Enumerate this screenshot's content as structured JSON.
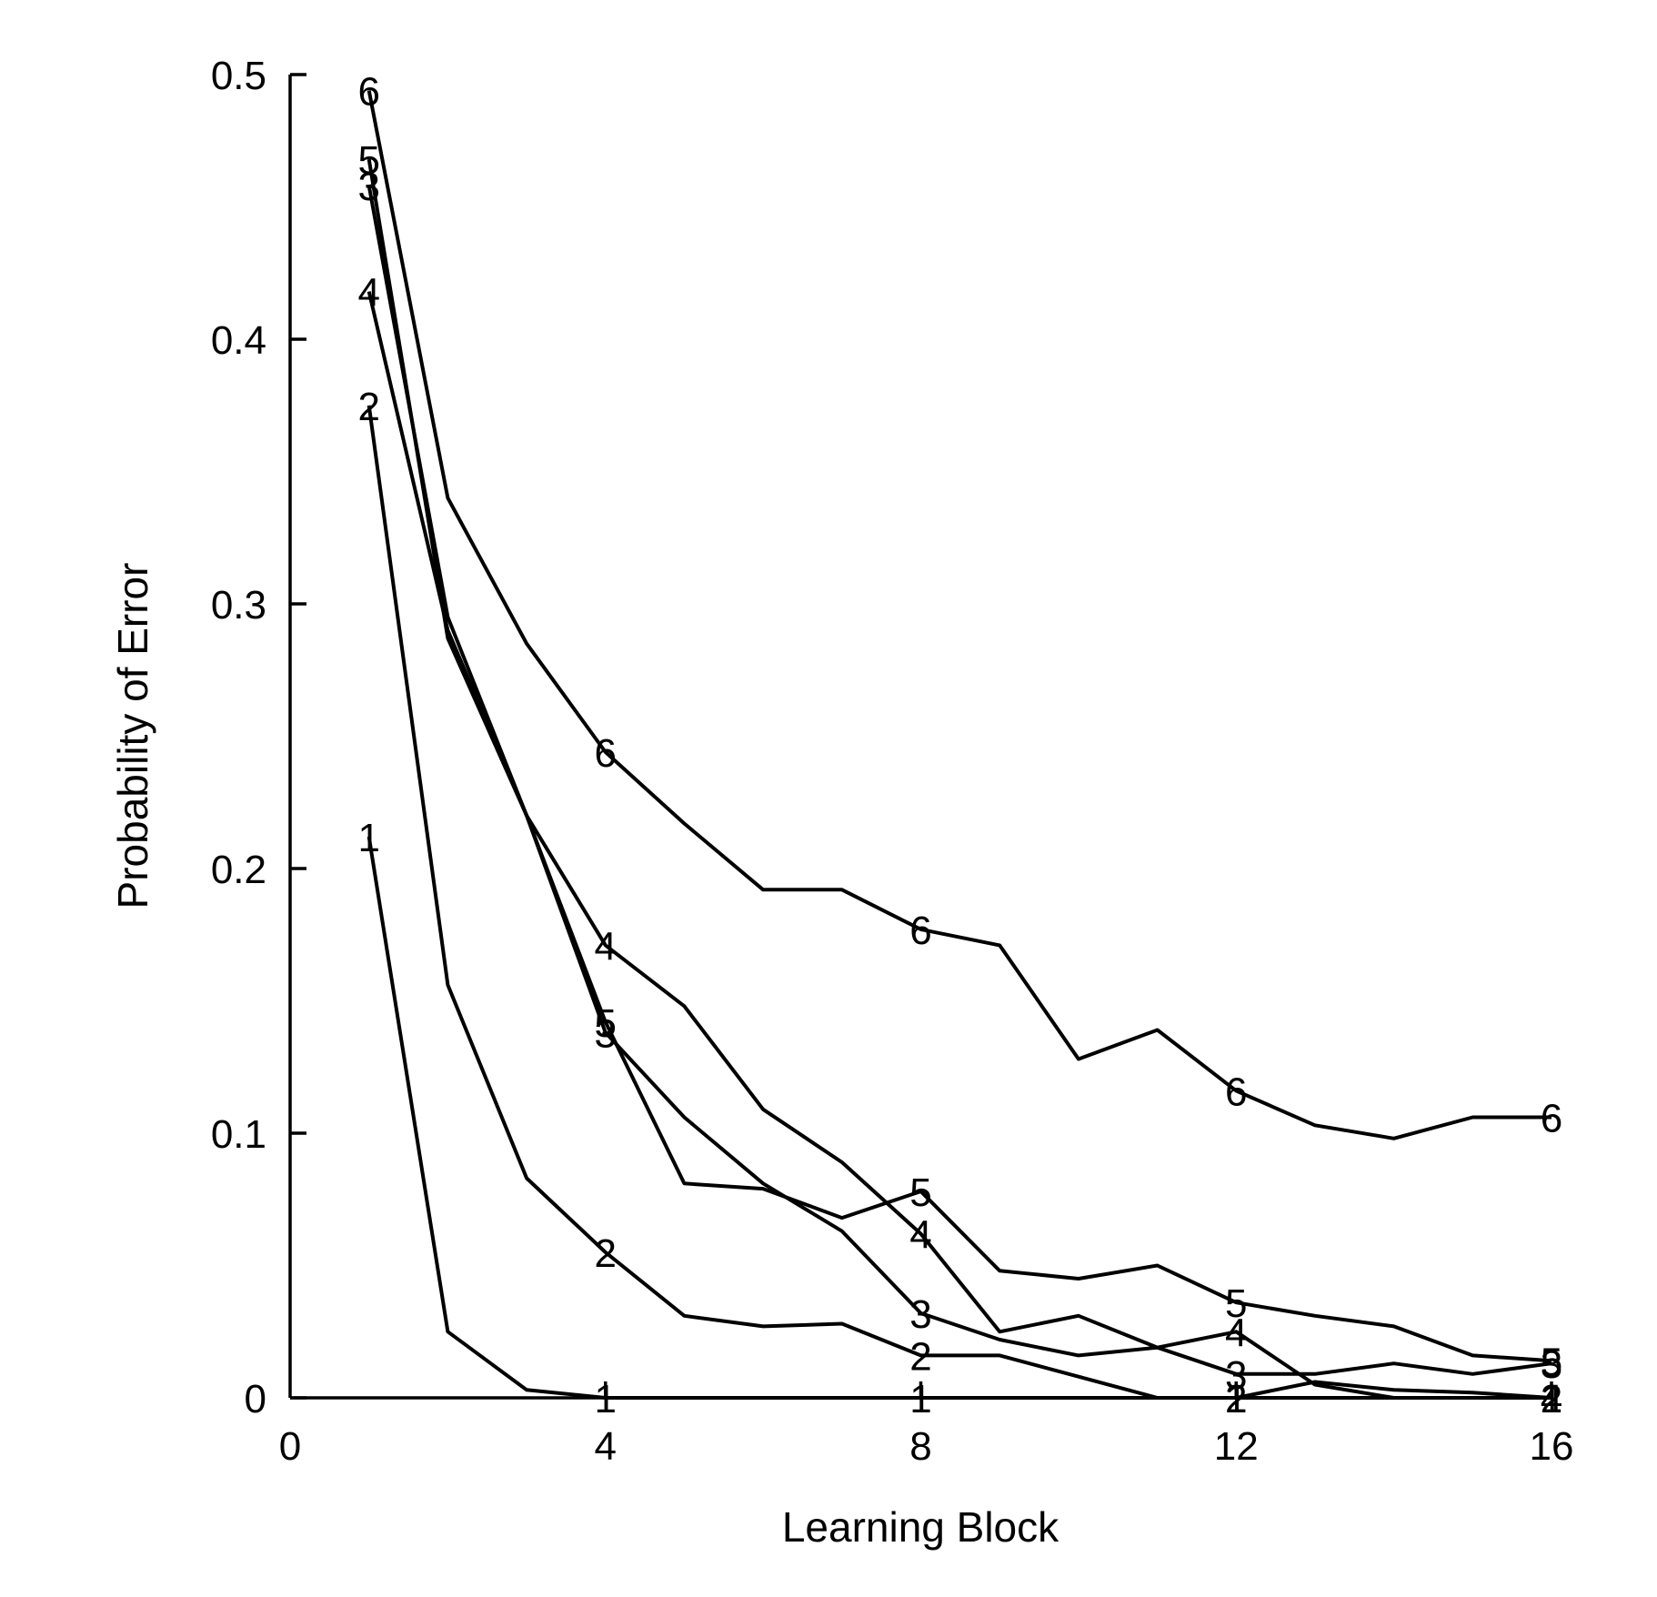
{
  "chart_data": {
    "type": "line",
    "title": "",
    "xlabel": "Learning Block",
    "ylabel": "Probability of Error",
    "xlim": [
      0,
      16
    ],
    "ylim": [
      0,
      0.5
    ],
    "xticks": [
      0,
      4,
      8,
      12,
      16
    ],
    "xtick_labels": [
      "0",
      "4",
      "8",
      "12",
      "16"
    ],
    "yticks": [
      0,
      0.1,
      0.2,
      0.3,
      0.4,
      0.5
    ],
    "ytick_labels": [
      "0",
      "0.1",
      "0.2",
      "0.3",
      "0.4",
      "0.5"
    ],
    "grid": false,
    "legend": "none (series marked by numeric labels at blocks 1, 4, 8, 12, 16)",
    "x": [
      1,
      2,
      3,
      4,
      5,
      6,
      7,
      8,
      9,
      10,
      11,
      12,
      13,
      14,
      15,
      16
    ],
    "label_x": [
      1,
      4,
      8,
      12,
      16
    ],
    "series": [
      {
        "name": "1",
        "values": [
          0.212,
          0.025,
          0.003,
          0.0,
          0.0,
          0.0,
          0.0,
          0.0,
          0.0,
          0.0,
          0.0,
          0.0,
          0.0,
          0.0,
          0.0,
          0.0
        ]
      },
      {
        "name": "2",
        "values": [
          0.375,
          0.156,
          0.083,
          0.055,
          0.031,
          0.027,
          0.028,
          0.016,
          0.016,
          0.008,
          0.0,
          0.0,
          0.006,
          0.003,
          0.002,
          0.0
        ]
      },
      {
        "name": "3",
        "values": [
          0.458,
          0.295,
          0.22,
          0.138,
          0.106,
          0.081,
          0.063,
          0.032,
          0.022,
          0.016,
          0.019,
          0.009,
          0.009,
          0.013,
          0.009,
          0.013
        ]
      },
      {
        "name": "4",
        "values": [
          0.418,
          0.29,
          0.22,
          0.171,
          0.148,
          0.109,
          0.089,
          0.062,
          0.025,
          0.031,
          0.019,
          0.025,
          0.005,
          0.0,
          0.0,
          0.0
        ]
      },
      {
        "name": "5",
        "values": [
          0.468,
          0.287,
          0.22,
          0.142,
          0.081,
          0.079,
          0.068,
          0.078,
          0.048,
          0.045,
          0.05,
          0.036,
          0.031,
          0.027,
          0.016,
          0.014
        ]
      },
      {
        "name": "6",
        "values": [
          0.494,
          0.34,
          0.285,
          0.244,
          0.217,
          0.192,
          0.192,
          0.177,
          0.171,
          0.128,
          0.139,
          0.116,
          0.103,
          0.098,
          0.106,
          0.106
        ]
      }
    ]
  },
  "style": {
    "line_color": "#000000",
    "background": "#ffffff"
  }
}
